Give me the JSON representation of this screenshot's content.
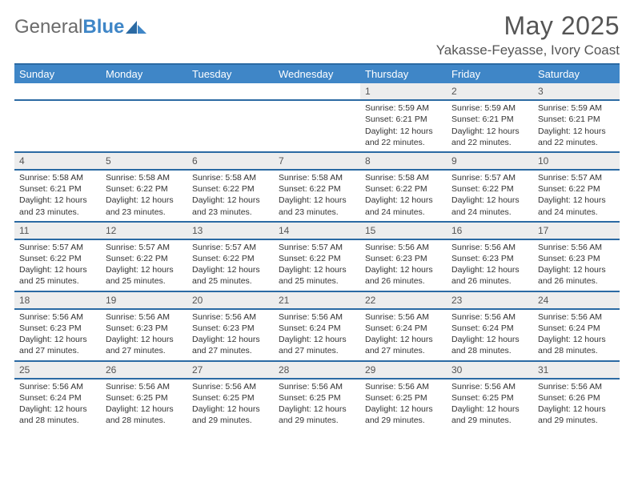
{
  "brand": {
    "part1": "General",
    "part2": "Blue"
  },
  "title": "May 2025",
  "location": "Yakasse-Feyasse, Ivory Coast",
  "colors": {
    "header_bg": "#3f86c7",
    "header_text": "#ffffff",
    "row_divider": "#2b6aa3",
    "daynum_bg": "#ededed",
    "body_text": "#333333",
    "title_text": "#555555"
  },
  "day_labels": [
    "Sunday",
    "Monday",
    "Tuesday",
    "Wednesday",
    "Thursday",
    "Friday",
    "Saturday"
  ],
  "weeks": [
    {
      "nums": [
        "",
        "",
        "",
        "",
        "1",
        "2",
        "3"
      ],
      "cells": [
        null,
        null,
        null,
        null,
        {
          "sunrise": "5:59 AM",
          "sunset": "6:21 PM",
          "daylight": "12 hours and 22 minutes."
        },
        {
          "sunrise": "5:59 AM",
          "sunset": "6:21 PM",
          "daylight": "12 hours and 22 minutes."
        },
        {
          "sunrise": "5:59 AM",
          "sunset": "6:21 PM",
          "daylight": "12 hours and 22 minutes."
        }
      ]
    },
    {
      "nums": [
        "4",
        "5",
        "6",
        "7",
        "8",
        "9",
        "10"
      ],
      "cells": [
        {
          "sunrise": "5:58 AM",
          "sunset": "6:21 PM",
          "daylight": "12 hours and 23 minutes."
        },
        {
          "sunrise": "5:58 AM",
          "sunset": "6:22 PM",
          "daylight": "12 hours and 23 minutes."
        },
        {
          "sunrise": "5:58 AM",
          "sunset": "6:22 PM",
          "daylight": "12 hours and 23 minutes."
        },
        {
          "sunrise": "5:58 AM",
          "sunset": "6:22 PM",
          "daylight": "12 hours and 23 minutes."
        },
        {
          "sunrise": "5:58 AM",
          "sunset": "6:22 PM",
          "daylight": "12 hours and 24 minutes."
        },
        {
          "sunrise": "5:57 AM",
          "sunset": "6:22 PM",
          "daylight": "12 hours and 24 minutes."
        },
        {
          "sunrise": "5:57 AM",
          "sunset": "6:22 PM",
          "daylight": "12 hours and 24 minutes."
        }
      ]
    },
    {
      "nums": [
        "11",
        "12",
        "13",
        "14",
        "15",
        "16",
        "17"
      ],
      "cells": [
        {
          "sunrise": "5:57 AM",
          "sunset": "6:22 PM",
          "daylight": "12 hours and 25 minutes."
        },
        {
          "sunrise": "5:57 AM",
          "sunset": "6:22 PM",
          "daylight": "12 hours and 25 minutes."
        },
        {
          "sunrise": "5:57 AM",
          "sunset": "6:22 PM",
          "daylight": "12 hours and 25 minutes."
        },
        {
          "sunrise": "5:57 AM",
          "sunset": "6:22 PM",
          "daylight": "12 hours and 25 minutes."
        },
        {
          "sunrise": "5:56 AM",
          "sunset": "6:23 PM",
          "daylight": "12 hours and 26 minutes."
        },
        {
          "sunrise": "5:56 AM",
          "sunset": "6:23 PM",
          "daylight": "12 hours and 26 minutes."
        },
        {
          "sunrise": "5:56 AM",
          "sunset": "6:23 PM",
          "daylight": "12 hours and 26 minutes."
        }
      ]
    },
    {
      "nums": [
        "18",
        "19",
        "20",
        "21",
        "22",
        "23",
        "24"
      ],
      "cells": [
        {
          "sunrise": "5:56 AM",
          "sunset": "6:23 PM",
          "daylight": "12 hours and 27 minutes."
        },
        {
          "sunrise": "5:56 AM",
          "sunset": "6:23 PM",
          "daylight": "12 hours and 27 minutes."
        },
        {
          "sunrise": "5:56 AM",
          "sunset": "6:23 PM",
          "daylight": "12 hours and 27 minutes."
        },
        {
          "sunrise": "5:56 AM",
          "sunset": "6:24 PM",
          "daylight": "12 hours and 27 minutes."
        },
        {
          "sunrise": "5:56 AM",
          "sunset": "6:24 PM",
          "daylight": "12 hours and 27 minutes."
        },
        {
          "sunrise": "5:56 AM",
          "sunset": "6:24 PM",
          "daylight": "12 hours and 28 minutes."
        },
        {
          "sunrise": "5:56 AM",
          "sunset": "6:24 PM",
          "daylight": "12 hours and 28 minutes."
        }
      ]
    },
    {
      "nums": [
        "25",
        "26",
        "27",
        "28",
        "29",
        "30",
        "31"
      ],
      "cells": [
        {
          "sunrise": "5:56 AM",
          "sunset": "6:24 PM",
          "daylight": "12 hours and 28 minutes."
        },
        {
          "sunrise": "5:56 AM",
          "sunset": "6:25 PM",
          "daylight": "12 hours and 28 minutes."
        },
        {
          "sunrise": "5:56 AM",
          "sunset": "6:25 PM",
          "daylight": "12 hours and 29 minutes."
        },
        {
          "sunrise": "5:56 AM",
          "sunset": "6:25 PM",
          "daylight": "12 hours and 29 minutes."
        },
        {
          "sunrise": "5:56 AM",
          "sunset": "6:25 PM",
          "daylight": "12 hours and 29 minutes."
        },
        {
          "sunrise": "5:56 AM",
          "sunset": "6:25 PM",
          "daylight": "12 hours and 29 minutes."
        },
        {
          "sunrise": "5:56 AM",
          "sunset": "6:26 PM",
          "daylight": "12 hours and 29 minutes."
        }
      ]
    }
  ],
  "labels": {
    "sunrise": "Sunrise: ",
    "sunset": "Sunset: ",
    "daylight": "Daylight: "
  }
}
